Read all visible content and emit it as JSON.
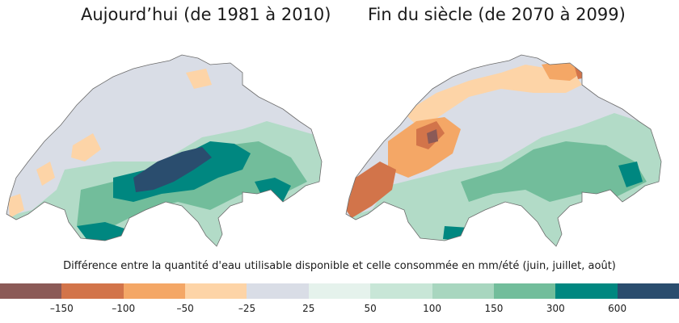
{
  "maps": [
    {
      "title": "Aujourd’hui (de 1981 à 2010)",
      "regions": [
        {
          "class": 3,
          "color": "#fdd4a7"
        },
        {
          "class": 4,
          "color": "#d9dde6"
        },
        {
          "class": 7,
          "color": "#b2dbc7"
        },
        {
          "class": 8,
          "color": "#72bd9b"
        },
        {
          "class": 9,
          "color": "#008780"
        },
        {
          "class": 10,
          "color": "#2a4d6e"
        }
      ]
    },
    {
      "title": "Fin du siècle (de 2070 à 2099)",
      "regions": [
        {
          "class": 0,
          "color": "#8b5a57"
        },
        {
          "class": 1,
          "color": "#d2744a"
        },
        {
          "class": 2,
          "color": "#f4a766"
        },
        {
          "class": 3,
          "color": "#fdd4a7"
        },
        {
          "class": 4,
          "color": "#d9dde6"
        },
        {
          "class": 7,
          "color": "#b2dbc7"
        },
        {
          "class": 8,
          "color": "#72bd9b"
        },
        {
          "class": 9,
          "color": "#008780"
        }
      ]
    }
  ],
  "legend": {
    "caption": "Différence entre la quantité d'eau utilisable disponible et celle consommée en mm/été (juin, juillet, août)",
    "ticks": [
      "–150",
      "–100",
      "–50",
      "–25",
      "25",
      "50",
      "100",
      "150",
      "300",
      "600"
    ],
    "colors": [
      "#8b5a57",
      "#d2744a",
      "#f4a766",
      "#fdd4a7",
      "#d9dde6",
      "#e5f2ec",
      "#c8e6d7",
      "#a8d6bf",
      "#72bd9b",
      "#008780",
      "#2a4d6e"
    ]
  }
}
